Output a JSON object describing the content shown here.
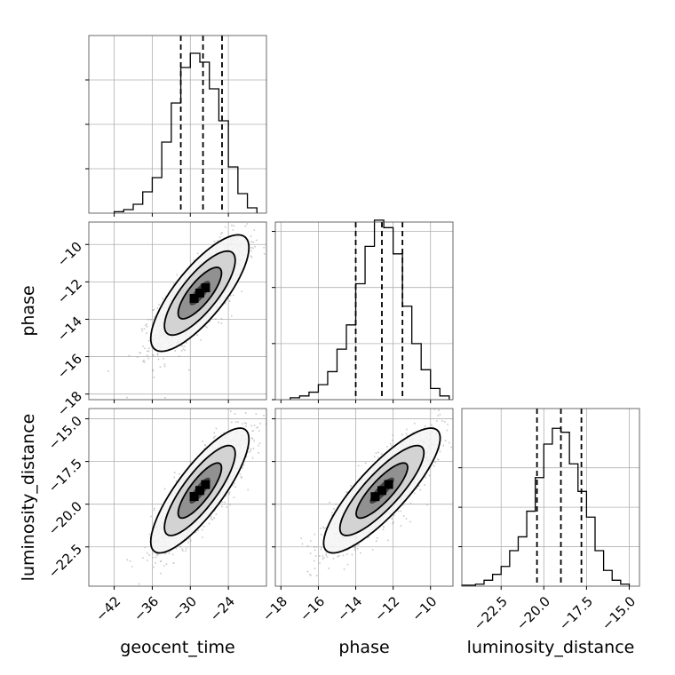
{
  "chart_data": {
    "type": "corner",
    "parameters": [
      "geocent_time",
      "phase",
      "luminosity_distance"
    ],
    "grid": true,
    "colors": {
      "line": "#000000",
      "grid": "#b0b0b0",
      "scatter": "#9a9a9a"
    },
    "histograms": [
      {
        "parameter": "geocent_time",
        "range": [
          -46,
          -18
        ],
        "bin_edges": [
          -42,
          -40.5,
          -39,
          -37.5,
          -36,
          -34.5,
          -33,
          -31.5,
          -30,
          -28.5,
          -27,
          -25.5,
          -24,
          -22.5,
          -21,
          -19.5
        ],
        "counts": [
          0.008,
          0.02,
          0.05,
          0.12,
          0.2,
          0.4,
          0.62,
          0.82,
          0.9,
          0.85,
          0.7,
          0.52,
          0.26,
          0.11,
          0.03
        ],
        "ylim": [
          0,
          1
        ],
        "quantiles": [
          -31.5,
          -28,
          -25
        ],
        "xticks": [
          -42,
          -36,
          -30,
          -24
        ],
        "yticks": [
          0.25,
          0.5,
          0.75
        ]
      },
      {
        "parameter": "phase",
        "range": [
          -18.3,
          -8.8
        ],
        "bin_edges": [
          -17.5,
          -17,
          -16.5,
          -16,
          -15.5,
          -15,
          -14.5,
          -14,
          -13.5,
          -13,
          -12.5,
          -12,
          -11.5,
          -11,
          -10.5,
          -10,
          -9.5,
          -9
        ],
        "counts": [
          0.01,
          0.02,
          0.04,
          0.08,
          0.15,
          0.27,
          0.4,
          0.62,
          0.82,
          0.96,
          0.92,
          0.78,
          0.5,
          0.3,
          0.16,
          0.06,
          0.02
        ],
        "ylim": [
          0,
          0.95
        ],
        "quantiles": [
          -14,
          -12.6,
          -11.5
        ],
        "xticks": [
          -18,
          -16,
          -14,
          -12,
          -10
        ],
        "yticks": [
          0.0,
          0.3,
          0.6,
          0.9
        ]
      },
      {
        "parameter": "luminosity_distance",
        "range": [
          -24.8,
          -14.4
        ],
        "bin_edges": [
          -24.8,
          -24,
          -23.5,
          -23,
          -22.5,
          -22,
          -21.5,
          -21,
          -20.5,
          -20,
          -19.5,
          -19,
          -18.5,
          -18,
          -17.5,
          -17,
          -16.5,
          -16,
          -15.5,
          -15
        ],
        "counts": [
          0.005,
          0.01,
          0.03,
          0.06,
          0.1,
          0.18,
          0.25,
          0.38,
          0.55,
          0.72,
          0.8,
          0.78,
          0.62,
          0.48,
          0.35,
          0.18,
          0.08,
          0.03,
          0.01
        ],
        "ylim": [
          0,
          0.9
        ],
        "quantiles": [
          -20.4,
          -19,
          -17.8
        ],
        "xticks": [
          -22.5,
          -20.0,
          -17.5,
          -15.0
        ],
        "yticks": [
          0.2,
          0.4,
          0.6
        ]
      }
    ],
    "pairs": [
      {
        "x": "geocent_time",
        "y": "phase",
        "xlim": [
          -46,
          -18
        ],
        "ylim": [
          -18.3,
          -8.8
        ],
        "mean": [
          -28.5,
          -12.6
        ],
        "std": [
          3.6,
          1.45
        ],
        "corr": 0.78,
        "xticks": [
          -42,
          -36,
          -30,
          -24
        ],
        "yticks": [
          -18,
          -16,
          -14,
          -12,
          -10
        ]
      },
      {
        "x": "geocent_time",
        "y": "luminosity_distance",
        "xlim": [
          -46,
          -18
        ],
        "ylim": [
          -24.8,
          -14.4
        ],
        "mean": [
          -28.5,
          -19.2
        ],
        "std": [
          3.6,
          1.7
        ],
        "corr": 0.82,
        "xticks": [
          -42,
          -36,
          -30,
          -24
        ],
        "yticks": [
          -22.5,
          -20.0,
          -17.5,
          -15.0
        ]
      },
      {
        "x": "phase",
        "y": "luminosity_distance",
        "xlim": [
          -18.3,
          -8.8
        ],
        "ylim": [
          -24.8,
          -14.4
        ],
        "mean": [
          -12.6,
          -19.2
        ],
        "std": [
          1.45,
          1.7
        ],
        "corr": 0.84,
        "xticks": [
          -18,
          -16,
          -14,
          -12,
          -10
        ],
        "yticks": [
          -22.5,
          -20.0,
          -17.5,
          -15.0
        ]
      }
    ]
  }
}
